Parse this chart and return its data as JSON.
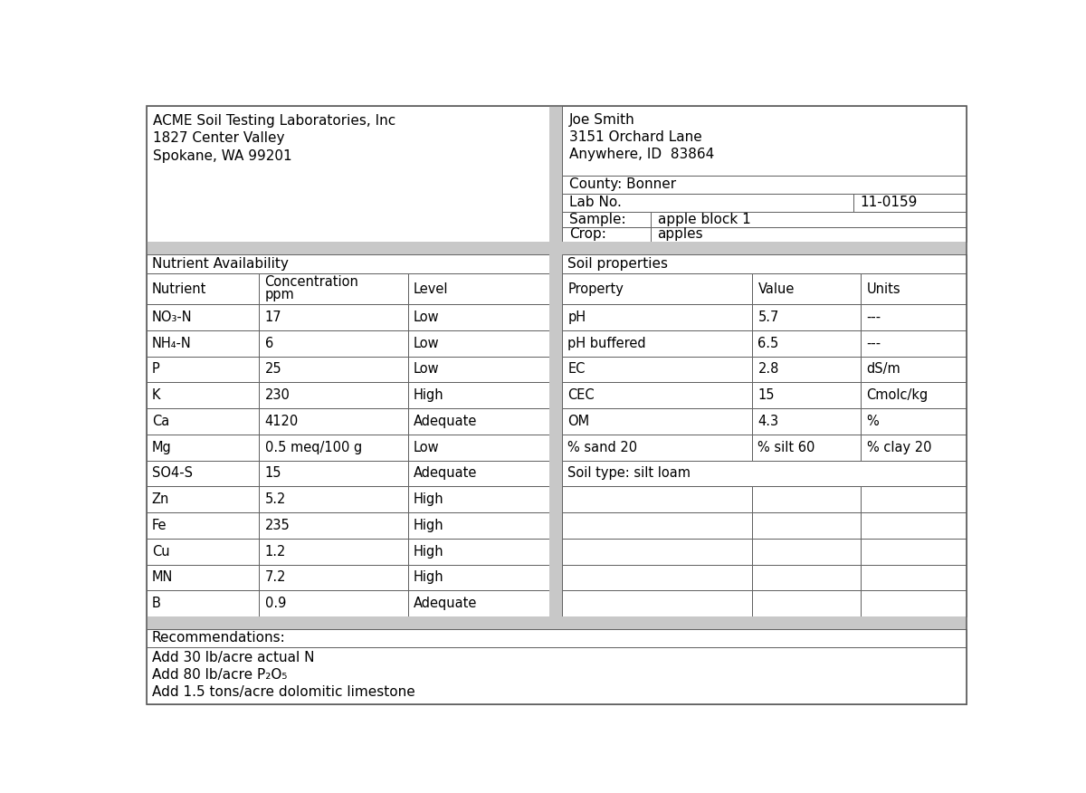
{
  "lab_name": "ACME Soil Testing Laboratories, Inc",
  "lab_address1": "1827 Center Valley",
  "lab_address2": "Spokane, WA 99201",
  "customer_name": "Joe Smith",
  "customer_address1": "3151 Orchard Lane",
  "customer_address2": "Anywhere, ID  83864",
  "county": "County: Bonner",
  "lab_no_label": "Lab No.",
  "lab_no_value": "11-0159",
  "sample_label": "Sample:",
  "sample_value": "apple block 1",
  "crop_label": "Crop:",
  "crop_value": "apples",
  "nutrient_section_title": "Nutrient Availability",
  "nutrient_headers": [
    "Nutrient",
    "Concentration\nppm",
    "Level"
  ],
  "nutrient_data": [
    [
      "NO₃-N",
      "17",
      "Low"
    ],
    [
      "NH₄-N",
      "6",
      "Low"
    ],
    [
      "P",
      "25",
      "Low"
    ],
    [
      "K",
      "230",
      "High"
    ],
    [
      "Ca",
      "4120",
      "Adequate"
    ],
    [
      "Mg",
      "0.5 meq/100 g",
      "Low"
    ],
    [
      "SO4-S",
      "15",
      "Adequate"
    ],
    [
      "Zn",
      "5.2",
      "High"
    ],
    [
      "Fe",
      "235",
      "High"
    ],
    [
      "Cu",
      "1.2",
      "High"
    ],
    [
      "MN",
      "7.2",
      "High"
    ],
    [
      "B",
      "0.9",
      "Adequate"
    ]
  ],
  "soil_section_title": "Soil properties",
  "soil_headers": [
    "Property",
    "Value",
    "Units"
  ],
  "soil_data": [
    [
      "pH",
      "5.7",
      "---"
    ],
    [
      "pH buffered",
      "6.5",
      "---"
    ],
    [
      "EC",
      "2.8",
      "dS/m"
    ],
    [
      "CEC",
      "15",
      "Cmolc/kg"
    ],
    [
      "OM",
      "4.3",
      "%"
    ],
    [
      "% sand 20",
      "% silt 60",
      "% clay 20"
    ],
    [
      "Soil type: silt loam",
      "",
      ""
    ]
  ],
  "recommendations_label": "Recommendations:",
  "recommendations": [
    "Add 30 lb/acre actual N",
    "Add 80 lb/acre P₂O₅",
    "Add 1.5 tons/acre dolomitic limestone"
  ],
  "bg_color": "#ffffff",
  "gray_sep_color": "#c8c8c8",
  "border_color": "#606060",
  "text_color": "#000000",
  "font_size": 10.5
}
